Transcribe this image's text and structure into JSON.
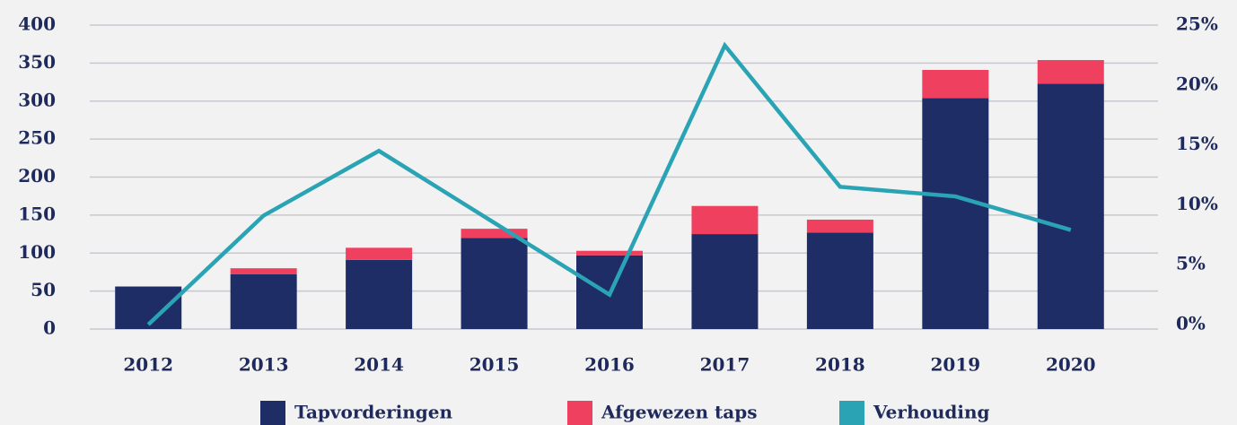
{
  "chart_data": {
    "type": "bar",
    "stacked": true,
    "categories": [
      "2012",
      "2013",
      "2014",
      "2015",
      "2016",
      "2017",
      "2018",
      "2019",
      "2020"
    ],
    "series": [
      {
        "name": "Tapvorderingen",
        "color": "#1f2d66",
        "values": [
          56,
          72,
          91,
          120,
          97,
          125,
          127,
          304,
          323
        ]
      },
      {
        "name": "Afgewezen taps",
        "color": "#f0405f",
        "values": [
          0,
          8,
          16,
          12,
          6,
          37,
          17,
          37,
          31
        ]
      },
      {
        "name": "Verhouding",
        "type": "line",
        "axis": "y2",
        "color": "#2aa4b4",
        "values": [
          0,
          9.1,
          14.5,
          8.5,
          2.5,
          23.3,
          11.5,
          10.7,
          7.9
        ]
      }
    ],
    "ylim": [
      0,
      400
    ],
    "yticks": [
      0,
      50,
      100,
      150,
      200,
      250,
      300,
      350,
      400
    ],
    "y2lim": [
      0,
      25
    ],
    "y2ticks": [
      {
        "value": 0,
        "label": "0%"
      },
      {
        "value": 5,
        "label": "5%"
      },
      {
        "value": 10,
        "label": "10%"
      },
      {
        "value": 15,
        "label": "15%"
      },
      {
        "value": 20,
        "label": "20%"
      },
      {
        "value": 25,
        "label": "25%"
      }
    ],
    "grid": true,
    "legend": "bottom"
  }
}
